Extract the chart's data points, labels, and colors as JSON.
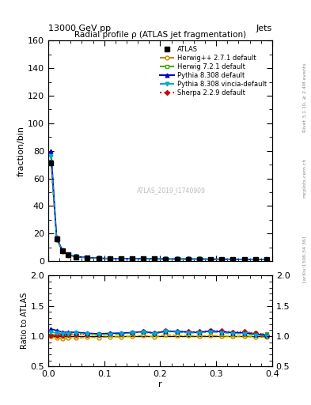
{
  "title": "Radial profile ρ (ATLAS jet fragmentation)",
  "header_left": "13000 GeV pp",
  "header_right": "Jets",
  "ylabel_main": "fraction/bin",
  "ylabel_ratio": "Ratio to ATLAS",
  "xlabel": "r",
  "watermark": "ATLAS_2019_I1740909",
  "right_label_top": "Rivet 3.1.10, ≥ 2.4M events",
  "right_label_bottom": "[arXiv:1306.34 36]",
  "right_label_mid": "mcplots.cern.ch",
  "r_values": [
    0.005,
    0.015,
    0.025,
    0.035,
    0.05,
    0.07,
    0.09,
    0.11,
    0.13,
    0.15,
    0.17,
    0.19,
    0.21,
    0.23,
    0.25,
    0.27,
    0.29,
    0.31,
    0.33,
    0.35,
    0.37,
    0.39
  ],
  "atlas_values": [
    71.5,
    16.0,
    7.5,
    4.5,
    3.2,
    2.5,
    2.1,
    1.9,
    1.8,
    1.7,
    1.6,
    1.6,
    1.5,
    1.5,
    1.5,
    1.5,
    1.4,
    1.4,
    1.4,
    1.3,
    1.3,
    1.2
  ],
  "atlas_errors": [
    3.0,
    0.8,
    0.4,
    0.25,
    0.18,
    0.12,
    0.1,
    0.09,
    0.08,
    0.07,
    0.06,
    0.06,
    0.06,
    0.06,
    0.06,
    0.06,
    0.05,
    0.05,
    0.05,
    0.05,
    0.05,
    0.05
  ],
  "atlas_ratio_errors": [
    0.05,
    0.04,
    0.04,
    0.04,
    0.03,
    0.03,
    0.025,
    0.025,
    0.025,
    0.025,
    0.025,
    0.025,
    0.025,
    0.025,
    0.025,
    0.025,
    0.025,
    0.025,
    0.025,
    0.025,
    0.025,
    0.03
  ],
  "herwig_pp_values": [
    71.0,
    15.5,
    7.2,
    4.4,
    3.1,
    2.45,
    2.05,
    1.88,
    1.78,
    1.7,
    1.62,
    1.58,
    1.53,
    1.52,
    1.51,
    1.5,
    1.42,
    1.4,
    1.39,
    1.3,
    1.28,
    1.18
  ],
  "herwig72_values": [
    72.5,
    16.5,
    7.7,
    4.7,
    3.35,
    2.6,
    2.18,
    1.98,
    1.88,
    1.8,
    1.72,
    1.68,
    1.63,
    1.62,
    1.6,
    1.6,
    1.52,
    1.5,
    1.48,
    1.38,
    1.36,
    1.24
  ],
  "pythia_values": [
    80.0,
    17.5,
    8.0,
    4.8,
    3.4,
    2.62,
    2.18,
    1.99,
    1.89,
    1.8,
    1.72,
    1.68,
    1.62,
    1.62,
    1.6,
    1.59,
    1.52,
    1.5,
    1.48,
    1.37,
    1.34,
    1.22
  ],
  "pythia_vincia_values": [
    76.0,
    16.8,
    7.8,
    4.7,
    3.35,
    2.6,
    2.15,
    1.96,
    1.86,
    1.79,
    1.7,
    1.66,
    1.61,
    1.6,
    1.58,
    1.58,
    1.5,
    1.48,
    1.46,
    1.35,
    1.32,
    1.2
  ],
  "sherpa_values": [
    72.0,
    16.2,
    7.6,
    4.6,
    3.3,
    2.58,
    2.15,
    1.97,
    1.88,
    1.79,
    1.72,
    1.69,
    1.63,
    1.62,
    1.61,
    1.61,
    1.53,
    1.52,
    1.5,
    1.4,
    1.37,
    1.22
  ],
  "herwig_pp_ratio": [
    0.993,
    0.969,
    0.96,
    0.978,
    0.969,
    0.98,
    0.976,
    0.989,
    0.989,
    1.0,
    1.013,
    0.988,
    1.02,
    1.013,
    1.007,
    1.0,
    1.014,
    1.0,
    0.993,
    1.0,
    0.985,
    0.983
  ],
  "herwig72_ratio": [
    1.014,
    1.031,
    1.027,
    1.044,
    1.047,
    1.04,
    1.038,
    1.042,
    1.044,
    1.059,
    1.075,
    1.05,
    1.087,
    1.08,
    1.067,
    1.067,
    1.086,
    1.071,
    1.057,
    1.062,
    1.046,
    1.033
  ],
  "pythia_ratio": [
    1.119,
    1.094,
    1.067,
    1.067,
    1.063,
    1.048,
    1.038,
    1.047,
    1.05,
    1.059,
    1.075,
    1.05,
    1.08,
    1.08,
    1.067,
    1.06,
    1.086,
    1.071,
    1.057,
    1.054,
    1.031,
    1.017
  ],
  "pythia_vincia_ratio": [
    1.063,
    1.05,
    1.04,
    1.044,
    1.047,
    1.04,
    1.024,
    1.032,
    1.033,
    1.053,
    1.063,
    1.038,
    1.073,
    1.067,
    1.053,
    1.053,
    1.071,
    1.057,
    1.043,
    1.038,
    1.015,
    1.0
  ],
  "sherpa_ratio": [
    1.007,
    1.013,
    1.013,
    1.022,
    1.031,
    1.032,
    1.024,
    1.037,
    1.044,
    1.053,
    1.075,
    1.056,
    1.087,
    1.08,
    1.073,
    1.073,
    1.093,
    1.086,
    1.071,
    1.077,
    1.054,
    1.017
  ],
  "ylim_main": [
    0,
    160
  ],
  "ylim_ratio": [
    0.5,
    2.0
  ],
  "herwig_pp_color": "#cc8800",
  "herwig72_color": "#44aa00",
  "pythia_color": "#0000cc",
  "pythia_vincia_color": "#00aacc",
  "sherpa_color": "#cc0000",
  "atlas_color": "#000000",
  "bg_color": "#ffffff"
}
